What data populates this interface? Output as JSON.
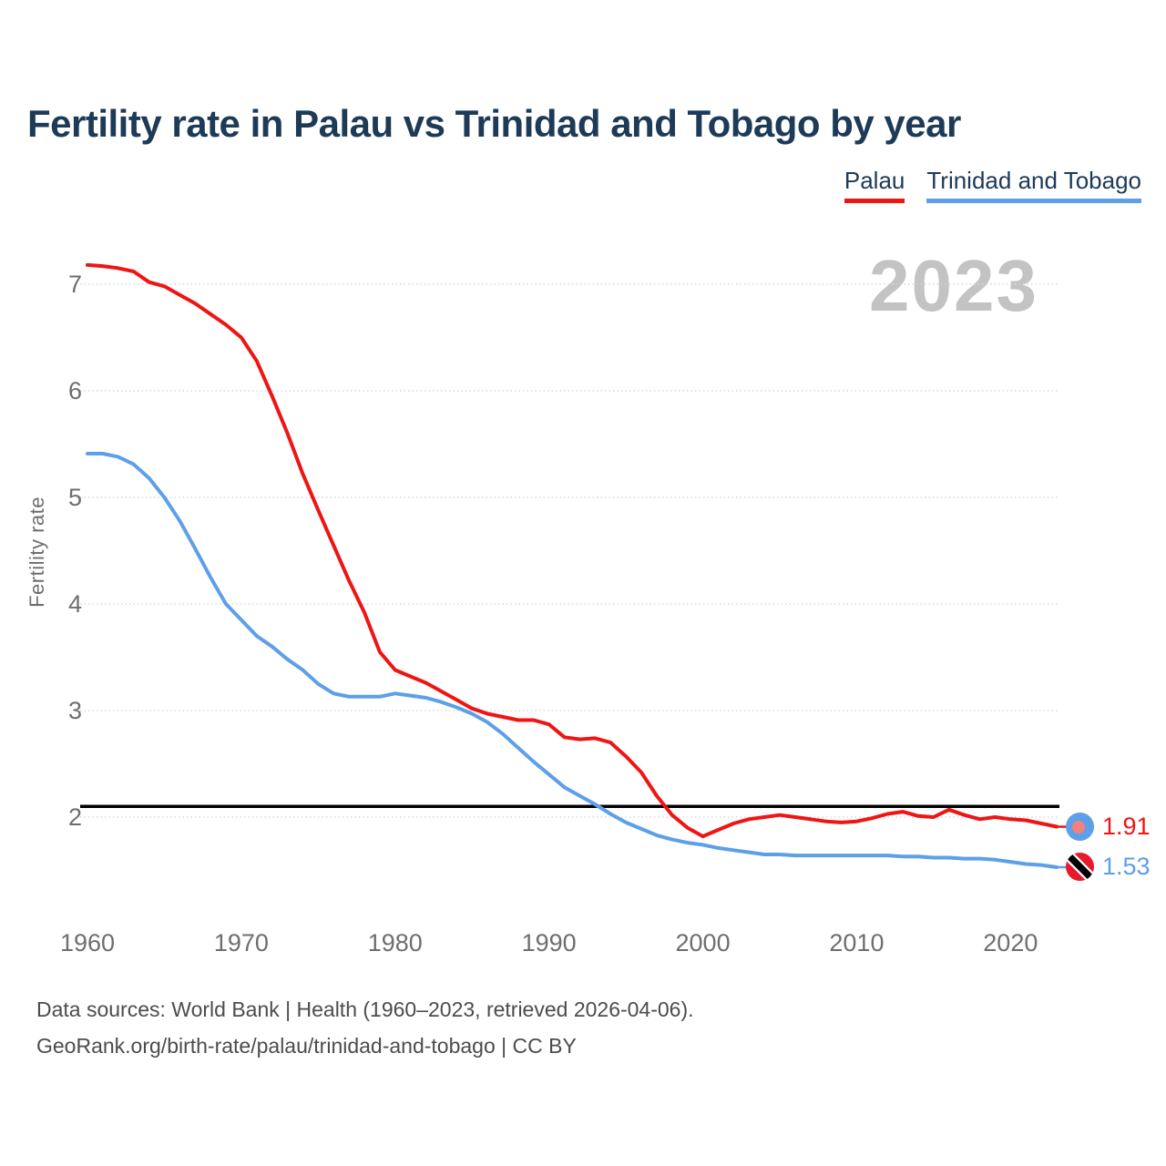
{
  "title": "Fertility rate in Palau vs Trinidad and Tobago by year",
  "legend": {
    "items": [
      {
        "label": "Palau",
        "color": "#ee1514"
      },
      {
        "label": "Trinidad and Tobago",
        "color": "#5d9fe8"
      }
    ]
  },
  "watermark": "2023",
  "footer": {
    "line1": "Data sources: World Bank | Health (1960–2023, retrieved 2026-04-06).",
    "line2": "GeoRank.org/birth-rate/palau/trinidad-and-tobago | CC BY"
  },
  "chart_data": {
    "type": "line",
    "title": "Fertility rate in Palau vs Trinidad and Tobago by year",
    "xlabel": "",
    "ylabel": "Fertility rate",
    "xlim": [
      1960,
      2023
    ],
    "ylim": [
      1.4,
      7.4
    ],
    "grid": "horizontal-dotted",
    "legend_position": "top-right",
    "y_ticks": [
      2,
      3,
      4,
      5,
      6,
      7
    ],
    "x_ticks": [
      1960,
      1970,
      1980,
      1990,
      2000,
      2010,
      2020
    ],
    "reference_line": {
      "value": 2.1,
      "color": "#000000",
      "label": ""
    },
    "x": [
      1960,
      1961,
      1962,
      1963,
      1964,
      1965,
      1966,
      1967,
      1968,
      1969,
      1970,
      1971,
      1972,
      1973,
      1974,
      1975,
      1976,
      1977,
      1978,
      1979,
      1980,
      1981,
      1982,
      1983,
      1984,
      1985,
      1986,
      1987,
      1988,
      1989,
      1990,
      1991,
      1992,
      1993,
      1994,
      1995,
      1996,
      1997,
      1998,
      1999,
      2000,
      2001,
      2002,
      2003,
      2004,
      2005,
      2006,
      2007,
      2008,
      2009,
      2010,
      2011,
      2012,
      2013,
      2014,
      2015,
      2016,
      2017,
      2018,
      2019,
      2020,
      2021,
      2022,
      2023
    ],
    "series": [
      {
        "name": "Palau",
        "color": "#ee1514",
        "values": [
          7.18,
          7.17,
          7.15,
          7.12,
          7.02,
          6.98,
          6.9,
          6.82,
          6.72,
          6.62,
          6.5,
          6.28,
          5.95,
          5.6,
          5.22,
          4.88,
          4.55,
          4.22,
          3.92,
          3.55,
          3.38,
          3.32,
          3.26,
          3.18,
          3.1,
          3.02,
          2.97,
          2.94,
          2.91,
          2.91,
          2.87,
          2.75,
          2.73,
          2.74,
          2.7,
          2.57,
          2.42,
          2.2,
          2.02,
          1.9,
          1.82,
          1.88,
          1.94,
          1.98,
          2.0,
          2.02,
          2.0,
          1.98,
          1.96,
          1.95,
          1.96,
          1.99,
          2.03,
          2.05,
          2.01,
          2.0,
          2.07,
          2.02,
          1.98,
          2.0,
          1.98,
          1.97,
          1.94,
          1.91
        ]
      },
      {
        "name": "Trinidad and Tobago",
        "color": "#5d9fe8",
        "values": [
          5.41,
          5.41,
          5.38,
          5.31,
          5.18,
          5.0,
          4.78,
          4.52,
          4.25,
          4.0,
          3.85,
          3.7,
          3.6,
          3.48,
          3.38,
          3.25,
          3.16,
          3.13,
          3.13,
          3.13,
          3.16,
          3.14,
          3.12,
          3.08,
          3.03,
          2.97,
          2.89,
          2.78,
          2.65,
          2.52,
          2.4,
          2.28,
          2.2,
          2.12,
          2.03,
          1.95,
          1.89,
          1.83,
          1.79,
          1.76,
          1.74,
          1.71,
          1.69,
          1.67,
          1.65,
          1.65,
          1.64,
          1.64,
          1.64,
          1.64,
          1.64,
          1.64,
          1.64,
          1.63,
          1.63,
          1.62,
          1.62,
          1.61,
          1.61,
          1.6,
          1.58,
          1.56,
          1.55,
          1.53
        ]
      }
    ],
    "end_labels": [
      {
        "series": "Palau",
        "value": "1.91",
        "color": "#ee1514",
        "flag": "palau"
      },
      {
        "series": "Trinidad and Tobago",
        "value": "1.53",
        "color": "#5d9fe8",
        "flag": "trinidad-and-tobago"
      }
    ]
  }
}
